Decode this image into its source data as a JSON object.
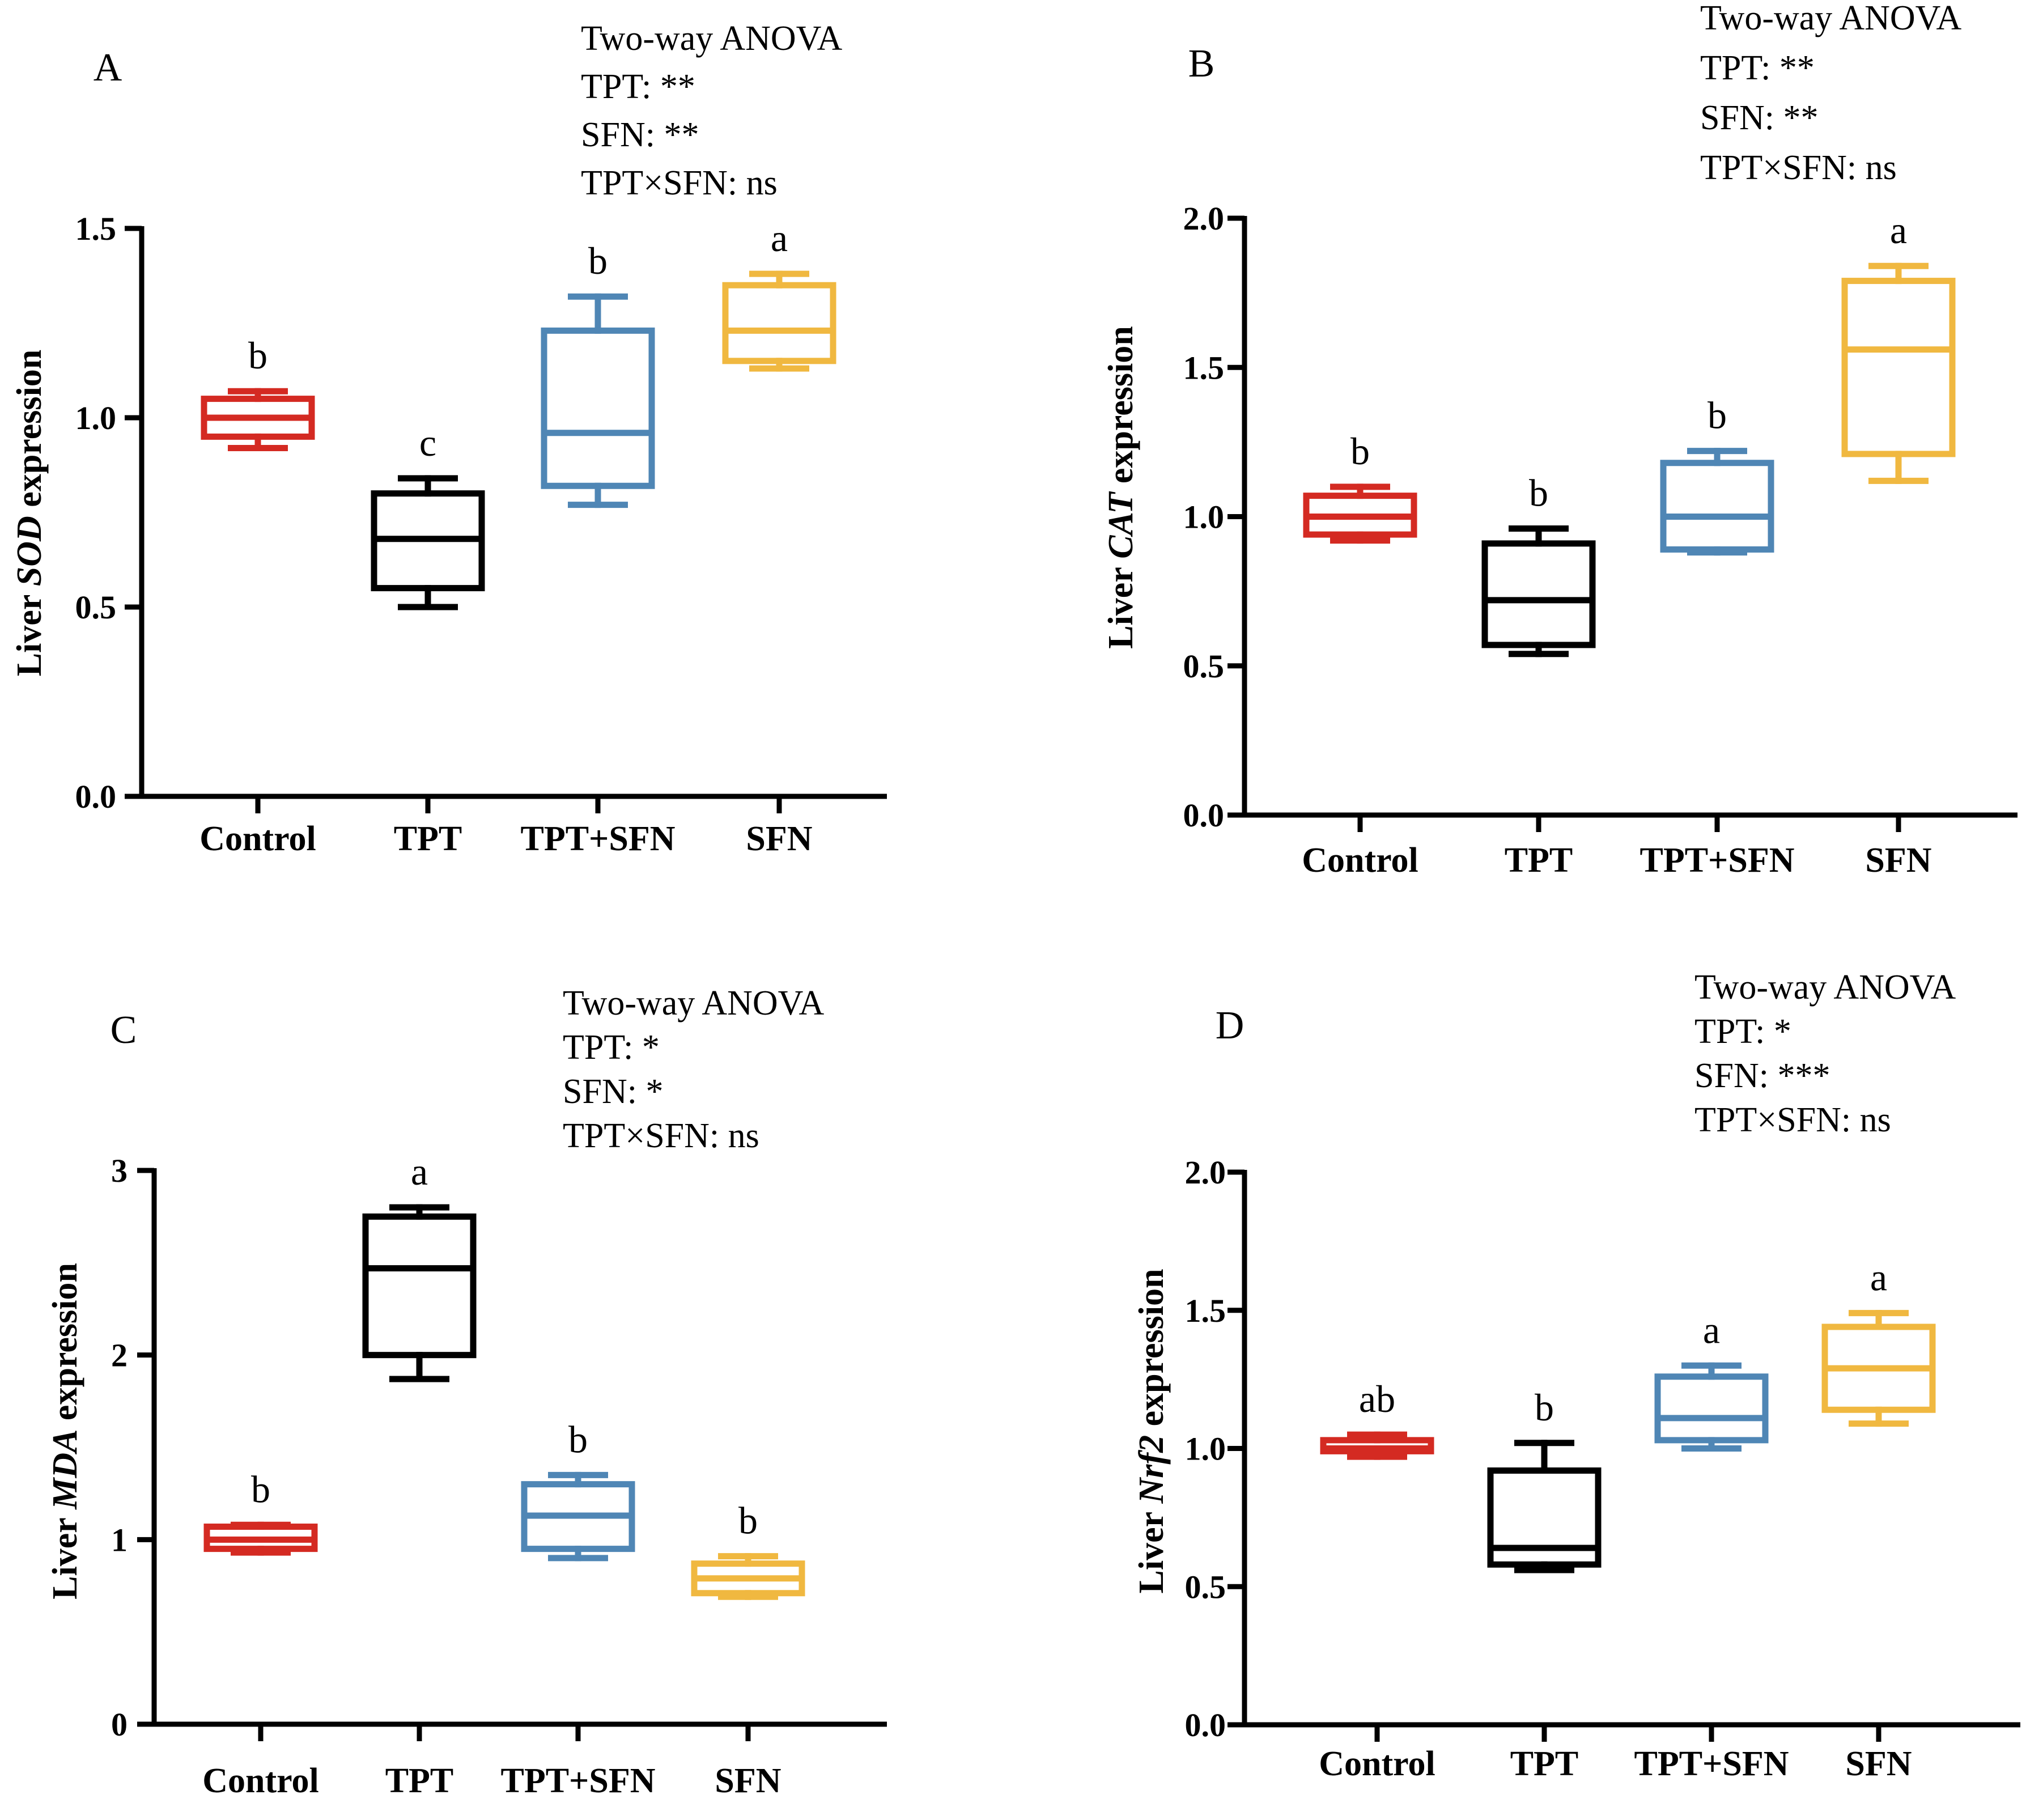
{
  "chart_data": [
    {
      "type": "box",
      "panel": "A",
      "ylabel_prefix": "Liver ",
      "ylabel_gene": "SOD",
      "ylabel_suffix": " expression",
      "ylim": [
        0,
        1.5
      ],
      "yticks": [
        0,
        0.5,
        1,
        1.5
      ],
      "ytick_labels": [
        "0.0",
        "0.5",
        "1.0",
        "1.5"
      ],
      "categories": [
        "Control",
        "TPT",
        "TPT+SFN",
        "SFN"
      ],
      "colors": [
        "#d42a22",
        "#000000",
        "#4f86b5",
        "#f0b840"
      ],
      "boxes": [
        {
          "min": 0.92,
          "q1": 0.95,
          "median": 1.0,
          "q3": 1.05,
          "max": 1.07
        },
        {
          "min": 0.5,
          "q1": 0.55,
          "median": 0.68,
          "q3": 0.8,
          "max": 0.84
        },
        {
          "min": 0.77,
          "q1": 0.82,
          "median": 0.96,
          "q3": 1.23,
          "max": 1.32
        },
        {
          "min": 1.13,
          "q1": 1.15,
          "median": 1.23,
          "q3": 1.35,
          "max": 1.38
        }
      ],
      "letters": [
        "b",
        "c",
        "b",
        "a"
      ],
      "anova": [
        "Two-way ANOVA",
        "TPT: **",
        "SFN: **",
        "TPT×SFN: ns"
      ]
    },
    {
      "type": "box",
      "panel": "B",
      "ylabel_prefix": "Liver ",
      "ylabel_gene": "CAT",
      "ylabel_suffix": " expression",
      "ylim": [
        0,
        2.0
      ],
      "yticks": [
        0,
        0.5,
        1,
        1.5,
        2
      ],
      "ytick_labels": [
        "0.0",
        "0.5",
        "1.0",
        "1.5",
        "2.0"
      ],
      "categories": [
        "Control",
        "TPT",
        "TPT+SFN",
        "SFN"
      ],
      "colors": [
        "#d42a22",
        "#000000",
        "#4f86b5",
        "#f0b840"
      ],
      "boxes": [
        {
          "min": 0.92,
          "q1": 0.94,
          "median": 1.0,
          "q3": 1.07,
          "max": 1.1
        },
        {
          "min": 0.54,
          "q1": 0.57,
          "median": 0.72,
          "q3": 0.91,
          "max": 0.96
        },
        {
          "min": 0.88,
          "q1": 0.89,
          "median": 1.0,
          "q3": 1.18,
          "max": 1.22
        },
        {
          "min": 1.12,
          "q1": 1.21,
          "median": 1.56,
          "q3": 1.79,
          "max": 1.84
        }
      ],
      "letters": [
        "b",
        "b",
        "b",
        "a"
      ],
      "anova": [
        "Two-way ANOVA",
        "TPT: **",
        "SFN: **",
        "TPT×SFN: ns"
      ]
    },
    {
      "type": "box",
      "panel": "C",
      "ylabel_prefix": "Liver ",
      "ylabel_gene": "MDA",
      "ylabel_suffix": " expression",
      "ylim": [
        0,
        3
      ],
      "yticks": [
        0,
        1,
        2,
        3
      ],
      "ytick_labels": [
        "0",
        "1",
        "2",
        "3"
      ],
      "categories": [
        "Control",
        "TPT",
        "TPT+SFN",
        "SFN"
      ],
      "colors": [
        "#d42a22",
        "#000000",
        "#4f86b5",
        "#f0b840"
      ],
      "boxes": [
        {
          "min": 0.93,
          "q1": 0.95,
          "median": 1.0,
          "q3": 1.07,
          "max": 1.08
        },
        {
          "min": 1.87,
          "q1": 2.0,
          "median": 2.47,
          "q3": 2.75,
          "max": 2.8
        },
        {
          "min": 0.9,
          "q1": 0.95,
          "median": 1.13,
          "q3": 1.3,
          "max": 1.35
        },
        {
          "min": 0.69,
          "q1": 0.71,
          "median": 0.79,
          "q3": 0.87,
          "max": 0.91
        }
      ],
      "letters": [
        "b",
        "a",
        "b",
        "b"
      ],
      "anova": [
        "Two-way ANOVA",
        "TPT: *",
        "SFN: *",
        "TPT×SFN: ns"
      ]
    },
    {
      "type": "box",
      "panel": "D",
      "ylabel_prefix": "Liver ",
      "ylabel_gene": "Nrf2",
      "ylabel_suffix": " expression",
      "ylim": [
        0,
        2.0
      ],
      "yticks": [
        0,
        0.5,
        1,
        1.5,
        2
      ],
      "ytick_labels": [
        "0.0",
        "0.5",
        "1.0",
        "1.5",
        "2.0"
      ],
      "categories": [
        "Control",
        "TPT",
        "TPT+SFN",
        "SFN"
      ],
      "colors": [
        "#d42a22",
        "#000000",
        "#4f86b5",
        "#f0b840"
      ],
      "boxes": [
        {
          "min": 0.97,
          "q1": 0.99,
          "median": 1.0,
          "q3": 1.03,
          "max": 1.05
        },
        {
          "min": 0.56,
          "q1": 0.58,
          "median": 0.64,
          "q3": 0.92,
          "max": 1.02
        },
        {
          "min": 1.0,
          "q1": 1.03,
          "median": 1.11,
          "q3": 1.26,
          "max": 1.3
        },
        {
          "min": 1.09,
          "q1": 1.14,
          "median": 1.29,
          "q3": 1.44,
          "max": 1.49
        }
      ],
      "letters": [
        "ab",
        "b",
        "a",
        "a"
      ],
      "anova": [
        "Two-way ANOVA",
        "TPT: *",
        "SFN: ***",
        "TPT×SFN: ns"
      ]
    }
  ]
}
